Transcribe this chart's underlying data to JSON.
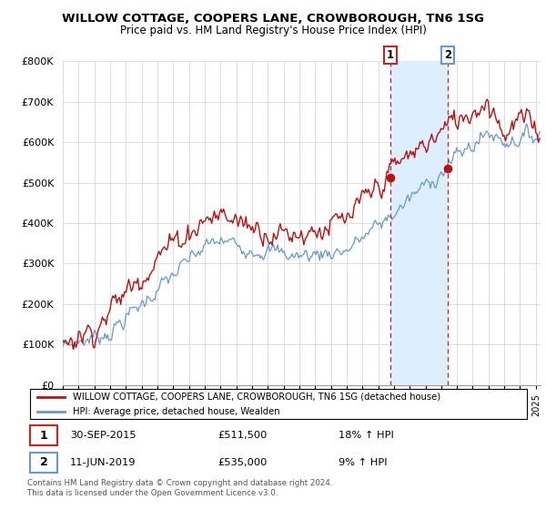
{
  "title": "WILLOW COTTAGE, COOPERS LANE, CROWBOROUGH, TN6 1SG",
  "subtitle": "Price paid vs. HM Land Registry's House Price Index (HPI)",
  "legend_line1": "WILLOW COTTAGE, COOPERS LANE, CROWBOROUGH, TN6 1SG (detached house)",
  "legend_line2": "HPI: Average price, detached house, Wealden",
  "footnote": "Contains HM Land Registry data © Crown copyright and database right 2024.\nThis data is licensed under the Open Government Licence v3.0.",
  "sale1_date": "30-SEP-2015",
  "sale1_price": "£511,500",
  "sale1_hpi": "18% ↑ HPI",
  "sale2_date": "11-JUN-2019",
  "sale2_price": "£535,000",
  "sale2_hpi": "9% ↑ HPI",
  "red_color": "#bb1111",
  "blue_color": "#6699cc",
  "highlight_color": "#ddeeff",
  "dashed_line_color": "#cc2222",
  "ylim": [
    0,
    800000
  ],
  "yticks": [
    0,
    100000,
    200000,
    300000,
    400000,
    500000,
    600000,
    700000,
    800000
  ],
  "ytick_labels": [
    "£0",
    "£100K",
    "£200K",
    "£300K",
    "£400K",
    "£500K",
    "£600K",
    "£700K",
    "£800K"
  ],
  "sale1_x": 2015.75,
  "sale1_y": 511500,
  "sale2_x": 2019.44,
  "sale2_y": 535000,
  "highlight_x1": 2015.75,
  "highlight_x2": 2019.44,
  "xmin": 1995.0,
  "xmax": 2025.3,
  "grid_color": "#dddddd",
  "box1_color": "#cc2222",
  "box2_color": "#6699cc"
}
